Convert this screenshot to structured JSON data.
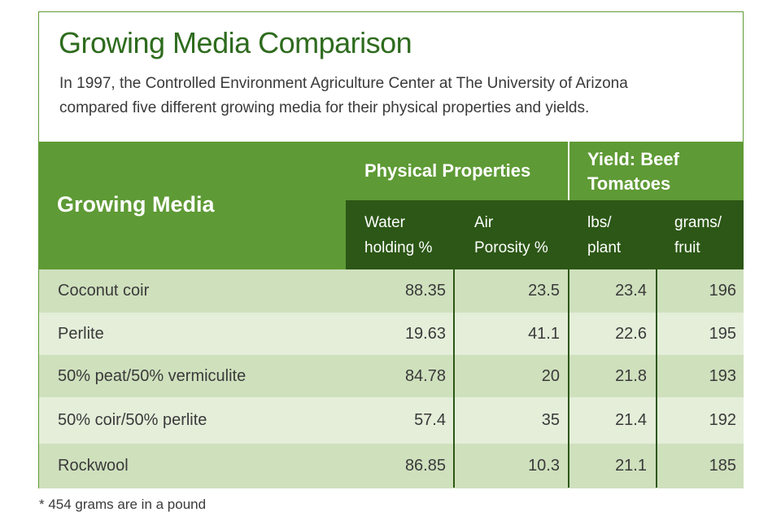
{
  "title": "Growing Media Comparison",
  "description_line1": "In 1997, the Controlled Environment Agriculture Center at The University of Arizona",
  "description_line2": "compared five different growing media for their physical properties and yields.",
  "headers": {
    "growing_media": "Growing Media",
    "physical_properties": "Physical Properties",
    "yield_line1": "Yield: Beef",
    "yield_line2": "Tomatoes",
    "water_line1": "Water",
    "water_line2": "holding %",
    "air_line1": "Air",
    "air_line2": "Porosity %",
    "lbs_line1": "lbs/",
    "lbs_line2": "plant",
    "grams_line1": "grams/",
    "grams_line2": "fruit"
  },
  "footnote": "* 454 grams are in a pound",
  "colors": {
    "header_green": "#5e9a35",
    "header_dark_green": "#2c5716",
    "title_green": "#2e6b1e",
    "row_dark": "#cfe0bd",
    "row_light": "#e4eed9"
  },
  "chart_data": {
    "type": "table",
    "title": "Growing Media Comparison",
    "columns": [
      "Growing Media",
      "Water holding %",
      "Air Porosity %",
      "lbs/ plant",
      "grams/ fruit"
    ],
    "rows": [
      {
        "media": "Coconut coir",
        "water": "88.35",
        "air": "23.5",
        "lbs": "23.4",
        "grams": "196"
      },
      {
        "media": "Perlite",
        "water": "19.63",
        "air": "41.1",
        "lbs": "22.6",
        "grams": "195"
      },
      {
        "media": "50% peat/50% vermiculite",
        "water": "84.78",
        "air": "20",
        "lbs": "21.8",
        "grams": "193"
      },
      {
        "media": "50% coir/50% perlite",
        "water": "57.4",
        "air": "35",
        "lbs": "21.4",
        "grams": "192"
      },
      {
        "media": "Rockwool",
        "water": "86.85",
        "air": "10.3",
        "lbs": "21.1",
        "grams": "185"
      }
    ]
  }
}
